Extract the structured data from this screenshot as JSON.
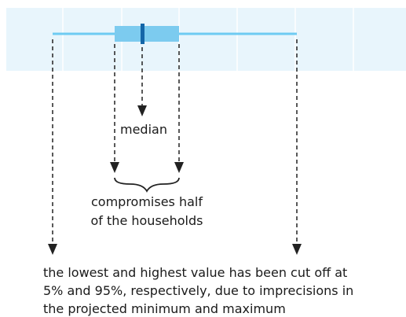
{
  "labels": {
    "median": "median",
    "half": [
      "compromises half",
      "of the households"
    ]
  },
  "caption": [
    "the lowest and highest value has been cut off at",
    "5% and 95%, respectively, due to imprecisions in",
    "the projected minimum and maximum"
  ]
}
